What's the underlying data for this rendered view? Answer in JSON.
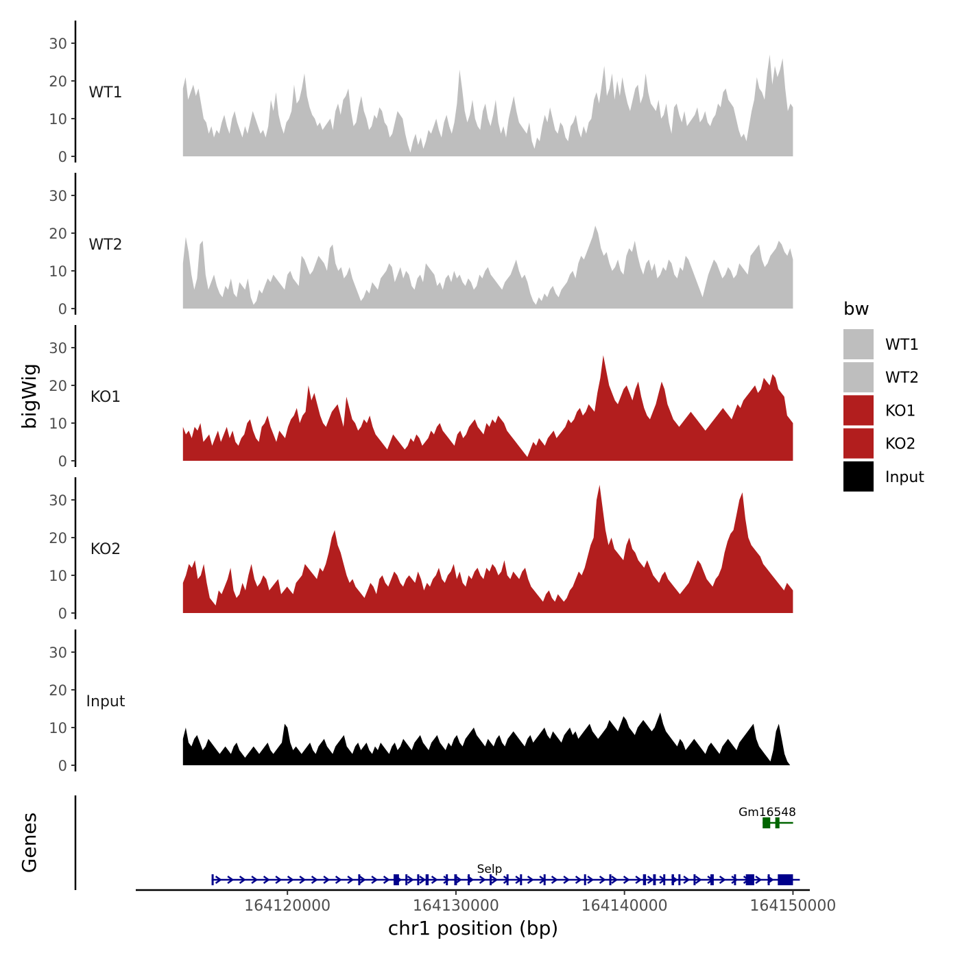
{
  "chart_data": {
    "type": "area",
    "ylabel": "bigWig",
    "xlabel": "chr1 position (bp)",
    "genes_label": "Genes",
    "ylim": [
      0,
      36
    ],
    "y_ticks": [
      "0",
      "10",
      "20",
      "30"
    ],
    "xlim": [
      164111000,
      164151000
    ],
    "x_ticks": [
      {
        "value": 164120000,
        "label": "164120000"
      },
      {
        "value": 164130000,
        "label": "164130000"
      },
      {
        "value": 164140000,
        "label": "164140000"
      },
      {
        "value": 164150000,
        "label": "164150000"
      }
    ],
    "data_range": [
      164113800,
      164150000
    ],
    "legend": {
      "title": "bw",
      "position": "right",
      "entries": [
        {
          "label": "WT1",
          "color": "#bebebe"
        },
        {
          "label": "WT2",
          "color": "#bebebe"
        },
        {
          "label": "KO1",
          "color": "#b21e1e"
        },
        {
          "label": "KO2",
          "color": "#b21e1e"
        },
        {
          "label": "Input",
          "color": "#000000"
        }
      ]
    },
    "series": [
      {
        "name": "WT1",
        "color": "#bebebe",
        "values": [
          18,
          21,
          15,
          17,
          19,
          16,
          18,
          14,
          10,
          9,
          6,
          8,
          5,
          7,
          6,
          9,
          11,
          8,
          6,
          10,
          12,
          9,
          7,
          5,
          8,
          6,
          9,
          12,
          10,
          8,
          6,
          7,
          5,
          8,
          15,
          12,
          17,
          11,
          8,
          6,
          9,
          10,
          12,
          19,
          14,
          15,
          18,
          22,
          16,
          13,
          11,
          10,
          8,
          9,
          7,
          8,
          9,
          10,
          7,
          12,
          14,
          11,
          15,
          16,
          18,
          12,
          8,
          9,
          13,
          16,
          12,
          10,
          7,
          8,
          11,
          10,
          13,
          12,
          9,
          8,
          5,
          6,
          9,
          12,
          11,
          10,
          6,
          3,
          1,
          4,
          6,
          3,
          5,
          2,
          4,
          7,
          6,
          8,
          10,
          7,
          5,
          9,
          11,
          8,
          6,
          9,
          14,
          23,
          18,
          12,
          9,
          11,
          15,
          10,
          8,
          7,
          12,
          14,
          10,
          8,
          11,
          15,
          9,
          6,
          8,
          5,
          10,
          13,
          16,
          12,
          9,
          8,
          7,
          6,
          9,
          4,
          2,
          5,
          4,
          8,
          11,
          9,
          13,
          10,
          7,
          6,
          9,
          8,
          5,
          4,
          8,
          9,
          11,
          7,
          5,
          8,
          6,
          9,
          10,
          15,
          17,
          14,
          19,
          24,
          16,
          18,
          22,
          15,
          20,
          16,
          21,
          17,
          14,
          12,
          15,
          18,
          19,
          14,
          16,
          22,
          17,
          14,
          13,
          12,
          15,
          10,
          11,
          14,
          9,
          6,
          13,
          14,
          11,
          9,
          12,
          8,
          9,
          10,
          11,
          13,
          9,
          10,
          12,
          9,
          8,
          10,
          11,
          14,
          13,
          17,
          18,
          15,
          14,
          13,
          10,
          7,
          5,
          6,
          4,
          8,
          12,
          15,
          21,
          18,
          17,
          15,
          22,
          27,
          19,
          24,
          21,
          23,
          26,
          18,
          12,
          14,
          13
        ]
      },
      {
        "name": "WT2",
        "color": "#bebebe",
        "values": [
          12,
          19,
          15,
          9,
          5,
          8,
          17,
          18,
          9,
          5,
          7,
          9,
          6,
          4,
          3,
          6,
          5,
          8,
          4,
          3,
          7,
          6,
          5,
          8,
          3,
          1,
          2,
          5,
          4,
          6,
          8,
          7,
          9,
          8,
          7,
          6,
          5,
          9,
          10,
          8,
          7,
          6,
          14,
          13,
          11,
          9,
          10,
          12,
          14,
          13,
          12,
          10,
          16,
          17,
          12,
          10,
          11,
          8,
          9,
          11,
          8,
          6,
          4,
          2,
          3,
          5,
          4,
          7,
          6,
          5,
          8,
          9,
          10,
          12,
          11,
          7,
          9,
          11,
          8,
          10,
          9,
          6,
          5,
          8,
          9,
          7,
          12,
          11,
          10,
          9,
          6,
          7,
          5,
          8,
          9,
          7,
          10,
          8,
          9,
          7,
          6,
          8,
          7,
          5,
          6,
          9,
          8,
          10,
          11,
          9,
          8,
          7,
          6,
          5,
          7,
          8,
          9,
          11,
          13,
          10,
          8,
          9,
          7,
          4,
          2,
          1,
          3,
          2,
          4,
          3,
          5,
          6,
          4,
          3,
          5,
          6,
          7,
          9,
          10,
          8,
          12,
          14,
          13,
          15,
          17,
          19,
          22,
          20,
          16,
          14,
          15,
          12,
          10,
          11,
          13,
          10,
          9,
          14,
          16,
          15,
          18,
          14,
          11,
          9,
          12,
          13,
          10,
          12,
          8,
          9,
          11,
          10,
          13,
          12,
          9,
          8,
          11,
          10,
          14,
          13,
          11,
          9,
          7,
          5,
          3,
          6,
          9,
          11,
          13,
          12,
          10,
          8,
          9,
          11,
          10,
          8,
          9,
          12,
          11,
          10,
          9,
          14,
          15,
          16,
          17,
          13,
          11,
          12,
          14,
          15,
          16,
          18,
          17,
          15,
          14,
          16,
          13
        ]
      },
      {
        "name": "KO1",
        "color": "#b21e1e",
        "values": [
          9,
          7,
          8,
          6,
          9,
          8,
          10,
          5,
          6,
          7,
          4,
          6,
          8,
          5,
          7,
          9,
          6,
          8,
          5,
          4,
          6,
          7,
          10,
          11,
          8,
          6,
          5,
          9,
          10,
          12,
          9,
          7,
          5,
          8,
          7,
          6,
          9,
          11,
          12,
          14,
          10,
          12,
          13,
          20,
          16,
          18,
          15,
          12,
          10,
          9,
          11,
          13,
          14,
          15,
          12,
          9,
          17,
          14,
          11,
          10,
          8,
          9,
          11,
          10,
          12,
          9,
          7,
          6,
          5,
          4,
          3,
          5,
          7,
          6,
          5,
          4,
          3,
          4,
          6,
          5,
          7,
          6,
          4,
          5,
          6,
          8,
          7,
          9,
          10,
          8,
          7,
          6,
          5,
          4,
          7,
          8,
          6,
          7,
          9,
          10,
          11,
          9,
          8,
          7,
          10,
          9,
          11,
          10,
          12,
          11,
          10,
          8,
          7,
          6,
          5,
          4,
          3,
          2,
          1,
          3,
          5,
          4,
          6,
          5,
          4,
          6,
          7,
          8,
          6,
          7,
          8,
          9,
          11,
          10,
          11,
          13,
          14,
          12,
          13,
          15,
          14,
          13,
          18,
          22,
          28,
          24,
          20,
          18,
          16,
          15,
          17,
          19,
          20,
          18,
          16,
          19,
          21,
          17,
          14,
          12,
          11,
          13,
          15,
          18,
          21,
          19,
          15,
          13,
          11,
          10,
          9,
          10,
          11,
          12,
          13,
          12,
          11,
          10,
          9,
          8,
          9,
          10,
          11,
          12,
          13,
          14,
          13,
          12,
          11,
          13,
          15,
          14,
          16,
          17,
          18,
          19,
          20,
          18,
          19,
          22,
          21,
          20,
          23,
          22,
          19,
          18,
          17,
          12,
          11,
          10
        ]
      },
      {
        "name": "KO2",
        "color": "#b21e1e",
        "values": [
          8,
          10,
          13,
          12,
          14,
          9,
          10,
          13,
          8,
          4,
          3,
          2,
          6,
          5,
          7,
          9,
          12,
          6,
          4,
          5,
          8,
          6,
          10,
          13,
          9,
          7,
          8,
          10,
          9,
          6,
          7,
          8,
          9,
          5,
          6,
          7,
          6,
          5,
          8,
          9,
          10,
          13,
          12,
          11,
          10,
          9,
          12,
          11,
          13,
          16,
          20,
          22,
          18,
          16,
          13,
          10,
          8,
          9,
          7,
          6,
          5,
          4,
          6,
          8,
          7,
          5,
          9,
          10,
          8,
          7,
          9,
          11,
          10,
          8,
          7,
          9,
          10,
          9,
          8,
          11,
          9,
          6,
          8,
          7,
          9,
          10,
          12,
          9,
          8,
          10,
          11,
          13,
          9,
          11,
          8,
          7,
          10,
          9,
          11,
          12,
          10,
          9,
          12,
          11,
          13,
          12,
          10,
          11,
          14,
          10,
          9,
          11,
          10,
          9,
          11,
          12,
          9,
          7,
          6,
          5,
          4,
          3,
          5,
          6,
          4,
          3,
          5,
          4,
          3,
          4,
          6,
          7,
          9,
          11,
          10,
          12,
          15,
          18,
          20,
          30,
          34,
          28,
          22,
          18,
          20,
          17,
          16,
          15,
          14,
          18,
          20,
          17,
          16,
          14,
          13,
          12,
          14,
          12,
          10,
          9,
          8,
          10,
          11,
          9,
          8,
          7,
          6,
          5,
          6,
          7,
          8,
          10,
          12,
          14,
          13,
          11,
          9,
          8,
          7,
          9,
          10,
          12,
          16,
          19,
          21,
          22,
          26,
          30,
          32,
          25,
          20,
          18,
          17,
          16,
          15,
          13,
          12,
          11,
          10,
          9,
          8,
          7,
          6,
          8,
          7,
          6
        ]
      },
      {
        "name": "Input",
        "color": "#000000",
        "values": [
          7,
          10,
          6,
          5,
          7,
          8,
          6,
          4,
          5,
          7,
          6,
          5,
          4,
          3,
          4,
          5,
          4,
          3,
          5,
          6,
          4,
          3,
          2,
          3,
          4,
          5,
          4,
          3,
          4,
          5,
          6,
          4,
          3,
          4,
          5,
          6,
          11,
          10,
          6,
          4,
          5,
          4,
          3,
          4,
          5,
          6,
          4,
          3,
          5,
          6,
          7,
          5,
          4,
          3,
          5,
          6,
          7,
          8,
          5,
          4,
          3,
          5,
          6,
          4,
          5,
          6,
          4,
          3,
          5,
          4,
          6,
          5,
          4,
          3,
          5,
          6,
          4,
          5,
          7,
          6,
          5,
          4,
          6,
          7,
          8,
          6,
          5,
          4,
          6,
          7,
          8,
          6,
          5,
          4,
          6,
          5,
          7,
          8,
          6,
          5,
          7,
          8,
          9,
          10,
          8,
          7,
          6,
          5,
          7,
          6,
          5,
          7,
          8,
          6,
          5,
          7,
          8,
          9,
          8,
          7,
          6,
          5,
          7,
          8,
          6,
          7,
          8,
          9,
          10,
          8,
          7,
          9,
          8,
          7,
          6,
          8,
          9,
          10,
          8,
          9,
          7,
          8,
          9,
          10,
          11,
          9,
          8,
          7,
          8,
          9,
          10,
          12,
          11,
          10,
          9,
          11,
          13,
          12,
          10,
          9,
          8,
          10,
          11,
          12,
          11,
          10,
          9,
          10,
          12,
          14,
          11,
          9,
          8,
          7,
          6,
          5,
          7,
          6,
          4,
          5,
          6,
          7,
          6,
          5,
          4,
          3,
          5,
          6,
          5,
          4,
          3,
          5,
          6,
          7,
          6,
          5,
          4,
          6,
          7,
          8,
          9,
          10,
          11,
          7,
          5,
          4,
          3,
          2,
          1,
          4,
          9,
          11,
          7,
          3,
          1,
          0,
          0
        ]
      }
    ],
    "genes": [
      {
        "name": "Gm16548",
        "color": "#006400",
        "start": 164148200,
        "end": 164149600,
        "strand": "+",
        "exons": [
          [
            164148200,
            164148650
          ],
          [
            164148950,
            164149200
          ]
        ]
      },
      {
        "name": "Selp",
        "color": "#00008b",
        "start": 164115500,
        "end": 164150000,
        "strand": "+",
        "exons": [
          [
            164115500,
            164115560
          ],
          [
            164124200,
            164124260
          ],
          [
            164126300,
            164126620
          ],
          [
            164127000,
            164127060
          ],
          [
            164127700,
            164127760
          ],
          [
            164128200,
            164128380
          ],
          [
            164129400,
            164129460
          ],
          [
            164129900,
            164130060
          ],
          [
            164130700,
            164130760
          ],
          [
            164132000,
            164132120
          ],
          [
            164133000,
            164133060
          ],
          [
            164133800,
            164133920
          ],
          [
            164135200,
            164135260
          ],
          [
            164137600,
            164137700
          ],
          [
            164139100,
            164139160
          ],
          [
            164141100,
            164141280
          ],
          [
            164141700,
            164141860
          ],
          [
            164142300,
            164142380
          ],
          [
            164142800,
            164142940
          ],
          [
            164143200,
            164143260
          ],
          [
            164144100,
            164144220
          ],
          [
            164145100,
            164145300
          ],
          [
            164146500,
            164146560
          ],
          [
            164147200,
            164147700
          ],
          [
            164148500,
            164148560
          ],
          [
            164149100,
            164150000
          ]
        ]
      }
    ]
  }
}
